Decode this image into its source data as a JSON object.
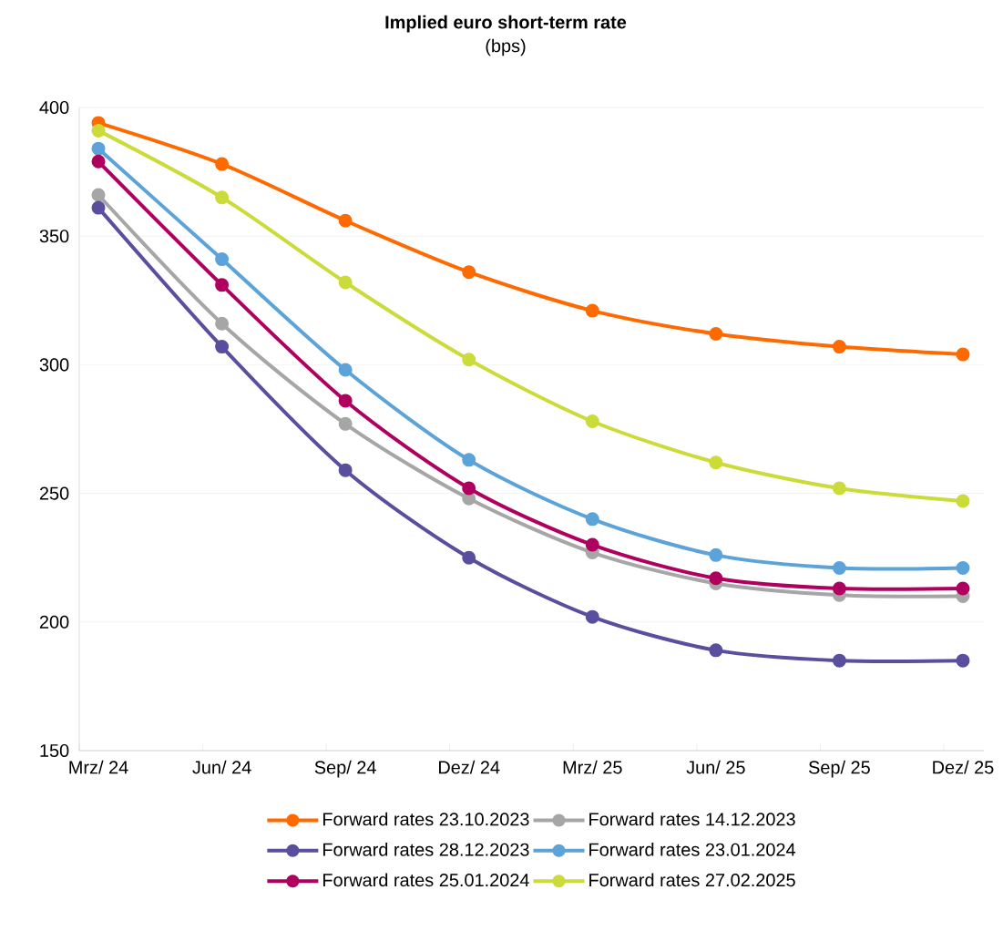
{
  "chart_data": {
    "type": "line",
    "title": "**Implied euro short-term rate**",
    "subtitle": "(bps)",
    "categories": [
      "Mrz/ 24",
      "Jun/ 24",
      "Sep/ 24",
      "Dez/ 24",
      "Mrz/ 25",
      "Jun/ 25",
      "Sep/ 25",
      "Dez/ 25"
    ],
    "series": [
      {
        "name": "Forward rates 23.10.2023",
        "color": "#ff6a00",
        "values": [
          394,
          378,
          356,
          336,
          321,
          312,
          307,
          304
        ]
      },
      {
        "name": "Forward rates 14.12.2023",
        "color": "#a6a6a6",
        "values": [
          366,
          316,
          277,
          248,
          227,
          215,
          210.5,
          210
        ]
      },
      {
        "name": "Forward rates 28.12.2023",
        "color": "#5a4e9e",
        "values": [
          361,
          307,
          259,
          225,
          202,
          189,
          185,
          185
        ]
      },
      {
        "name": "Forward rates 23.01.2024",
        "color": "#5ba3d9",
        "values": [
          384,
          341,
          298,
          263,
          240,
          226,
          221,
          221
        ]
      },
      {
        "name": "Forward rates 25.01.2024",
        "color": "#b0005f",
        "values": [
          379,
          331,
          286,
          252,
          230,
          217,
          213,
          213
        ]
      },
      {
        "name": "Forward rates 27.02.2025",
        "color": "#cbdb3a",
        "values": [
          391,
          365,
          332,
          302,
          278,
          262,
          252,
          247
        ]
      }
    ],
    "ylim": [
      150,
      400
    ],
    "yticks": [
      150,
      200,
      250,
      300,
      350,
      400
    ],
    "grid": "y",
    "legend": "bottom",
    "marker": "circle",
    "line_style": "solid"
  }
}
